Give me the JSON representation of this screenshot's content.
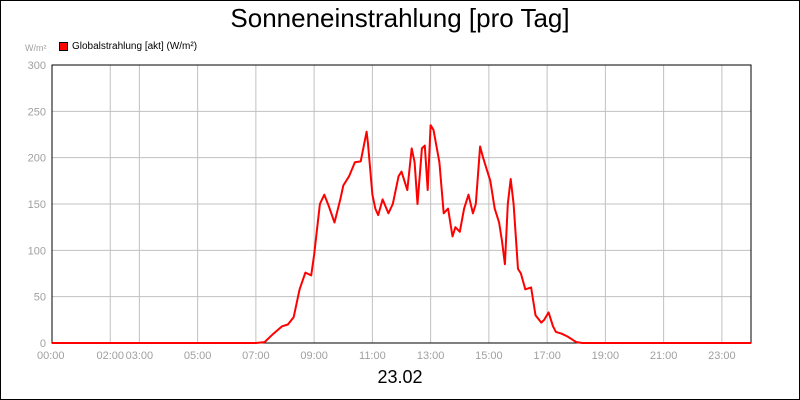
{
  "chart_data": {
    "type": "line",
    "title": "Sonneneinstrahlung [pro Tag]",
    "ylabel": "W/m²",
    "xlabel": "23.02",
    "ylim": [
      0,
      300
    ],
    "xlim": [
      0,
      24
    ],
    "yticks": [
      0,
      50,
      100,
      150,
      200,
      250,
      300
    ],
    "xticks": [
      {
        "x": 0,
        "label": "00:00"
      },
      {
        "x": 2,
        "label": "02:00"
      },
      {
        "x": 3,
        "label": "03:00"
      },
      {
        "x": 5,
        "label": "05:00"
      },
      {
        "x": 7,
        "label": "07:00"
      },
      {
        "x": 9,
        "label": "09:00"
      },
      {
        "x": 11,
        "label": "11:00"
      },
      {
        "x": 13,
        "label": "13:00"
      },
      {
        "x": 15,
        "label": "15:00"
      },
      {
        "x": 17,
        "label": "17:00"
      },
      {
        "x": 19,
        "label": "19:00"
      },
      {
        "x": 21,
        "label": "21:00"
      },
      {
        "x": 23,
        "label": "23:00"
      }
    ],
    "grid": true,
    "legend": "top-left",
    "colors": {
      "series": "#ff0000",
      "grid": "#c0c0c0",
      "tick_text": "#a0a0a0"
    },
    "series": [
      {
        "name": "Globalstrahlung [akt] (W/m²)",
        "x": [
          0,
          7.0,
          7.3,
          7.6,
          7.9,
          8.1,
          8.3,
          8.5,
          8.7,
          8.9,
          9.0,
          9.2,
          9.35,
          9.5,
          9.7,
          9.9,
          10.0,
          10.2,
          10.4,
          10.6,
          10.8,
          10.85,
          11.0,
          11.1,
          11.2,
          11.35,
          11.55,
          11.7,
          11.9,
          12.0,
          12.2,
          12.35,
          12.45,
          12.55,
          12.7,
          12.8,
          12.9,
          13.0,
          13.1,
          13.3,
          13.45,
          13.6,
          13.75,
          13.85,
          14.0,
          14.15,
          14.3,
          14.45,
          14.55,
          14.7,
          14.8,
          14.95,
          15.05,
          15.2,
          15.35,
          15.45,
          15.55,
          15.65,
          15.75,
          15.85,
          16.0,
          16.1,
          16.25,
          16.45,
          16.6,
          16.8,
          16.9,
          17.05,
          17.2,
          17.3,
          17.5,
          17.7,
          17.85,
          18.0,
          18.2,
          24.0
        ],
        "values": [
          0,
          0,
          1,
          10,
          18,
          20,
          28,
          58,
          76,
          73,
          95,
          150,
          160,
          148,
          130,
          155,
          170,
          180,
          195,
          196,
          228,
          215,
          160,
          145,
          138,
          155,
          140,
          150,
          180,
          185,
          165,
          210,
          195,
          150,
          210,
          213,
          165,
          235,
          230,
          195,
          140,
          145,
          115,
          125,
          120,
          145,
          160,
          140,
          150,
          212,
          200,
          185,
          175,
          145,
          130,
          110,
          85,
          150,
          177,
          150,
          80,
          75,
          58,
          60,
          30,
          22,
          25,
          33,
          18,
          12,
          10,
          7,
          4,
          1,
          0,
          0
        ]
      }
    ]
  }
}
